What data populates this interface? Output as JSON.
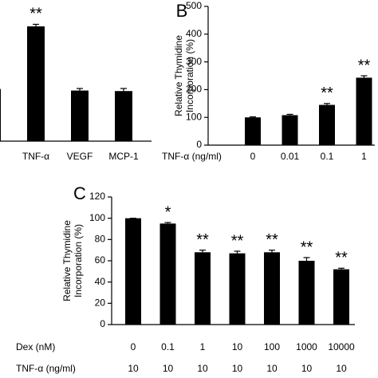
{
  "chart_data": [
    {
      "type": "bar",
      "categories": [
        null,
        "TNF-α",
        "VEGF",
        "MCP-1"
      ],
      "values": [
        100,
        220,
        97,
        96
      ],
      "errors": [
        3,
        4,
        4,
        5
      ],
      "annotations": [
        null,
        "**",
        null,
        null
      ],
      "ylim": [
        0,
        240
      ],
      "color": "#000000"
    },
    {
      "type": "bar",
      "panel": "B",
      "y_label": "Relative Thymidine Incorporation (%)",
      "x_label": "TNF-α (ng/ml)",
      "categories": [
        "0",
        "0.01",
        "0.1",
        "1"
      ],
      "values": [
        100,
        108,
        145,
        243
      ],
      "errors": [
        2,
        3,
        5,
        7
      ],
      "annotations": [
        null,
        null,
        "**",
        "**"
      ],
      "ylim": [
        0,
        500
      ],
      "yticks": [
        0,
        100,
        200,
        300,
        400,
        500
      ],
      "color": "#000000"
    },
    {
      "type": "bar",
      "panel": "C",
      "y_label": "Relative Thymidine Incorporation (%)",
      "categories": [
        "0",
        "0.1",
        "1",
        "10",
        "100",
        "1000",
        "10000"
      ],
      "category_rows": [
        {
          "label": "Dex (nM)",
          "values": [
            "0",
            "0.1",
            "1",
            "10",
            "100",
            "1000",
            "10000"
          ]
        },
        {
          "label": "TNF-α (ng/ml)",
          "values": [
            "10",
            "10",
            "10",
            "10",
            "10",
            "10",
            "10"
          ]
        }
      ],
      "values": [
        100,
        95,
        68,
        67,
        68,
        60,
        52
      ],
      "errors": [
        0,
        1,
        2,
        2,
        2,
        3,
        1
      ],
      "annotations": [
        null,
        "*",
        "**",
        "**",
        "**",
        "**",
        "**"
      ],
      "ylim": [
        0,
        120
      ],
      "yticks": [
        0,
        20,
        40,
        60,
        80,
        100,
        120
      ],
      "color": "#000000"
    }
  ]
}
